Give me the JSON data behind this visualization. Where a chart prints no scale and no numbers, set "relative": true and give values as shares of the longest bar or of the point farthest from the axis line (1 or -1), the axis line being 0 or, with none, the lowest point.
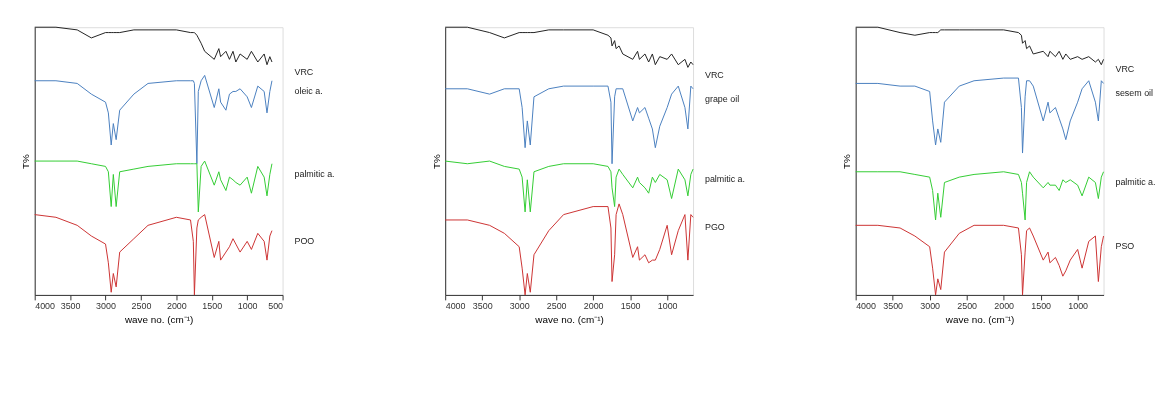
{
  "chart_data": [
    {
      "type": "line",
      "relative": true,
      "xlabel": "wave no. (cm⁻¹)",
      "ylabel": "T%",
      "xlim": [
        4000,
        500
      ],
      "xticks": [
        4000,
        3500,
        3000,
        2500,
        2000,
        1500,
        1000,
        500
      ],
      "tick_labels": "x",
      "grid": false,
      "legend": false,
      "marker": "none",
      "line_style": "solid",
      "x": [
        4000,
        3700,
        3400,
        3200,
        3000,
        2960,
        2920,
        2890,
        2850,
        2800,
        2600,
        2400,
        2000,
        1800,
        1760,
        1745,
        1710,
        1690,
        1650,
        1600,
        1465,
        1400,
        1375,
        1300,
        1250,
        1200,
        1160,
        1100,
        1000,
        940,
        850,
        760,
        720,
        680,
        650
      ],
      "series": [
        {
          "name": "VRC",
          "color": "#222222",
          "values": [
            1.0,
            1.0,
            0.99,
            0.96,
            0.98,
            0.98,
            0.98,
            0.98,
            0.98,
            0.98,
            0.99,
            0.99,
            0.99,
            0.98,
            0.98,
            0.98,
            0.97,
            0.96,
            0.94,
            0.91,
            0.88,
            0.92,
            0.89,
            0.91,
            0.88,
            0.91,
            0.87,
            0.9,
            0.88,
            0.91,
            0.87,
            0.9,
            0.86,
            0.89,
            0.87
          ]
        },
        {
          "name": "oleic a.",
          "color": "#4a7fbf",
          "values": [
            0.8,
            0.8,
            0.79,
            0.75,
            0.72,
            0.68,
            0.56,
            0.64,
            0.58,
            0.69,
            0.75,
            0.79,
            0.8,
            0.8,
            0.8,
            0.79,
            0.49,
            0.76,
            0.8,
            0.82,
            0.7,
            0.77,
            0.72,
            0.69,
            0.75,
            0.76,
            0.76,
            0.77,
            0.74,
            0.7,
            0.78,
            0.76,
            0.68,
            0.76,
            0.8
          ]
        },
        {
          "name": "palmitic a.",
          "color": "#33cc33",
          "values": [
            0.5,
            0.5,
            0.5,
            0.49,
            0.48,
            0.46,
            0.33,
            0.45,
            0.33,
            0.46,
            0.47,
            0.48,
            0.49,
            0.49,
            0.49,
            0.49,
            0.49,
            0.31,
            0.48,
            0.5,
            0.41,
            0.46,
            0.43,
            0.39,
            0.44,
            0.43,
            0.42,
            0.41,
            0.44,
            0.38,
            0.48,
            0.44,
            0.37,
            0.45,
            0.49
          ]
        },
        {
          "name": "POO",
          "color": "#cc3333",
          "values": [
            0.3,
            0.29,
            0.26,
            0.22,
            0.19,
            0.12,
            0.01,
            0.08,
            0.03,
            0.16,
            0.21,
            0.26,
            0.29,
            0.28,
            0.2,
            0.0,
            0.25,
            0.28,
            0.29,
            0.3,
            0.14,
            0.2,
            0.13,
            0.16,
            0.18,
            0.21,
            0.19,
            0.16,
            0.2,
            0.17,
            0.23,
            0.2,
            0.13,
            0.22,
            0.24
          ]
        }
      ]
    },
    {
      "type": "line",
      "relative": true,
      "xlabel": "wave no. (cm⁻¹)",
      "ylabel": "T%",
      "xlim": [
        4000,
        650
      ],
      "xticks": [
        4000,
        3500,
        3000,
        2500,
        2000,
        1500,
        1000
      ],
      "tick_labels": "x",
      "grid": false,
      "legend": false,
      "marker": "none",
      "line_style": "solid",
      "x": [
        4000,
        3700,
        3400,
        3200,
        3000,
        2960,
        2920,
        2890,
        2850,
        2800,
        2600,
        2400,
        2000,
        1800,
        1760,
        1745,
        1710,
        1690,
        1650,
        1600,
        1465,
        1400,
        1375,
        1300,
        1250,
        1200,
        1160,
        1100,
        1000,
        940,
        850,
        760,
        720,
        680,
        650
      ],
      "series": [
        {
          "name": "VRC",
          "color": "#222222",
          "values": [
            1.0,
            1.0,
            0.98,
            0.96,
            0.98,
            0.98,
            0.98,
            0.98,
            0.98,
            0.98,
            0.99,
            0.99,
            0.99,
            0.97,
            0.96,
            0.93,
            0.95,
            0.92,
            0.93,
            0.9,
            0.88,
            0.91,
            0.88,
            0.9,
            0.87,
            0.9,
            0.86,
            0.89,
            0.88,
            0.9,
            0.86,
            0.88,
            0.85,
            0.87,
            0.86
          ]
        },
        {
          "name": "grape oil",
          "color": "#4a7fbf",
          "values": [
            0.77,
            0.77,
            0.75,
            0.77,
            0.77,
            0.7,
            0.55,
            0.65,
            0.56,
            0.74,
            0.77,
            0.78,
            0.78,
            0.78,
            0.72,
            0.49,
            0.74,
            0.77,
            0.77,
            0.77,
            0.65,
            0.7,
            0.68,
            0.7,
            0.66,
            0.62,
            0.55,
            0.63,
            0.7,
            0.75,
            0.78,
            0.7,
            0.62,
            0.78,
            0.77
          ]
        },
        {
          "name": "palmitic a.",
          "color": "#33cc33",
          "values": [
            0.5,
            0.49,
            0.5,
            0.48,
            0.47,
            0.44,
            0.31,
            0.43,
            0.31,
            0.46,
            0.48,
            0.49,
            0.49,
            0.48,
            0.46,
            0.4,
            0.33,
            0.44,
            0.47,
            0.45,
            0.4,
            0.44,
            0.42,
            0.4,
            0.38,
            0.44,
            0.42,
            0.45,
            0.43,
            0.36,
            0.47,
            0.43,
            0.37,
            0.45,
            0.47
          ]
        },
        {
          "name": "PGO",
          "color": "#cc3333",
          "values": [
            0.28,
            0.28,
            0.26,
            0.23,
            0.18,
            0.1,
            0.0,
            0.08,
            0.01,
            0.15,
            0.24,
            0.3,
            0.33,
            0.33,
            0.25,
            0.05,
            0.15,
            0.3,
            0.34,
            0.3,
            0.14,
            0.18,
            0.13,
            0.15,
            0.12,
            0.13,
            0.13,
            0.17,
            0.26,
            0.15,
            0.24,
            0.3,
            0.13,
            0.3,
            0.29
          ]
        }
      ]
    },
    {
      "type": "line",
      "relative": true,
      "xlabel": "wave no. (cm⁻¹)",
      "ylabel": "T%",
      "xlim": [
        4000,
        650
      ],
      "xticks": [
        4000,
        3500,
        3000,
        2500,
        2000,
        1500,
        1000
      ],
      "tick_labels": "x",
      "grid": false,
      "legend": false,
      "marker": "none",
      "line_style": "solid",
      "x": [
        4000,
        3700,
        3400,
        3200,
        3000,
        2960,
        2920,
        2890,
        2850,
        2800,
        2600,
        2400,
        2000,
        1800,
        1760,
        1745,
        1710,
        1690,
        1650,
        1600,
        1465,
        1400,
        1375,
        1300,
        1250,
        1200,
        1160,
        1100,
        1000,
        940,
        850,
        760,
        720,
        680,
        650
      ],
      "series": [
        {
          "name": "VRC",
          "color": "#222222",
          "values": [
            1.0,
            1.0,
            0.98,
            0.97,
            0.98,
            0.98,
            0.98,
            0.98,
            0.99,
            0.99,
            0.99,
            0.99,
            0.99,
            0.98,
            0.97,
            0.94,
            0.95,
            0.92,
            0.93,
            0.9,
            0.91,
            0.89,
            0.91,
            0.89,
            0.91,
            0.88,
            0.9,
            0.88,
            0.89,
            0.88,
            0.89,
            0.87,
            0.88,
            0.86,
            0.88
          ]
        },
        {
          "name": "sesem oil",
          "color": "#4a7fbf",
          "values": [
            0.79,
            0.79,
            0.78,
            0.78,
            0.76,
            0.65,
            0.56,
            0.62,
            0.57,
            0.72,
            0.78,
            0.8,
            0.81,
            0.81,
            0.7,
            0.53,
            0.74,
            0.8,
            0.8,
            0.78,
            0.65,
            0.72,
            0.68,
            0.7,
            0.66,
            0.62,
            0.58,
            0.65,
            0.72,
            0.77,
            0.8,
            0.72,
            0.65,
            0.8,
            0.79
          ]
        },
        {
          "name": "palmitic a.",
          "color": "#33cc33",
          "values": [
            0.46,
            0.46,
            0.46,
            0.45,
            0.44,
            0.39,
            0.28,
            0.38,
            0.29,
            0.42,
            0.44,
            0.45,
            0.46,
            0.45,
            0.42,
            0.38,
            0.28,
            0.42,
            0.46,
            0.44,
            0.4,
            0.42,
            0.41,
            0.41,
            0.39,
            0.43,
            0.42,
            0.43,
            0.41,
            0.37,
            0.44,
            0.42,
            0.36,
            0.44,
            0.46
          ]
        },
        {
          "name": "PSO",
          "color": "#cc3333",
          "values": [
            0.26,
            0.26,
            0.25,
            0.22,
            0.18,
            0.1,
            0.0,
            0.06,
            0.02,
            0.16,
            0.23,
            0.26,
            0.26,
            0.25,
            0.15,
            0.0,
            0.16,
            0.24,
            0.25,
            0.22,
            0.13,
            0.16,
            0.12,
            0.14,
            0.11,
            0.07,
            0.09,
            0.13,
            0.17,
            0.1,
            0.2,
            0.22,
            0.05,
            0.18,
            0.22
          ]
        }
      ]
    }
  ]
}
